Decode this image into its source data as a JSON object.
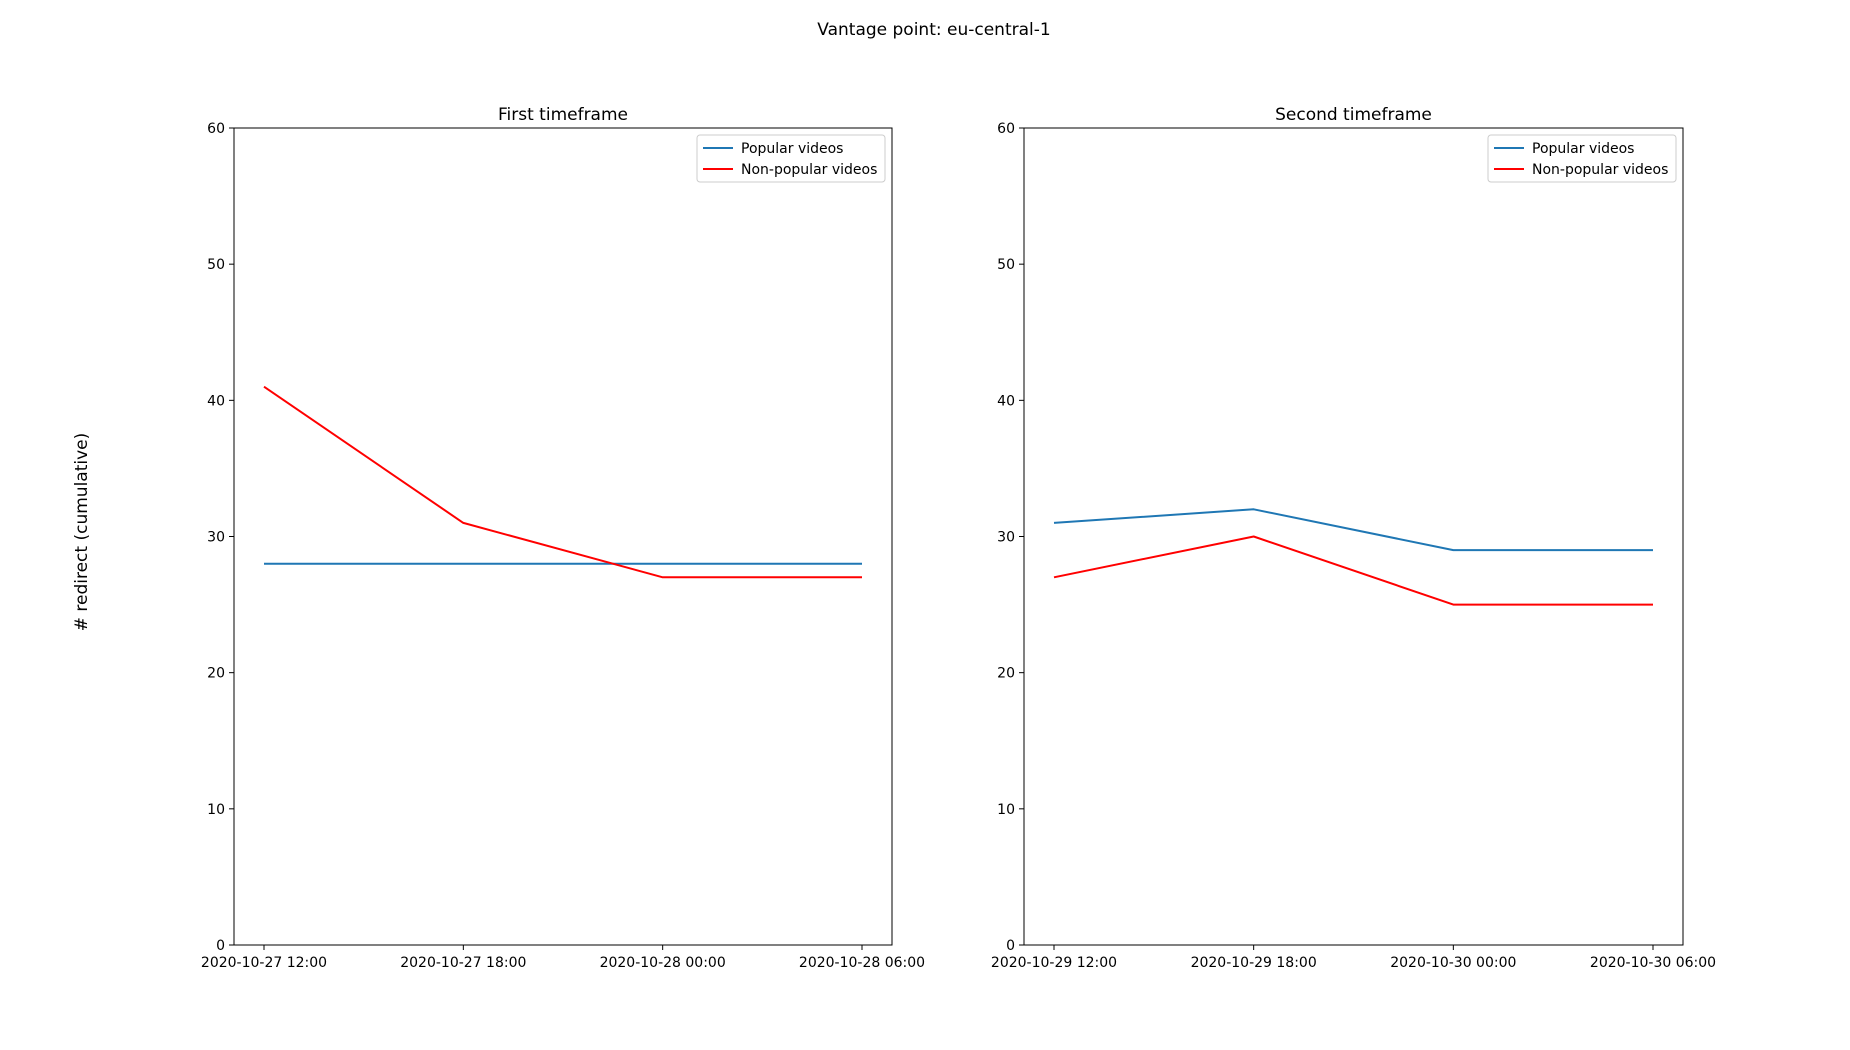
{
  "suptitle": "Vantage point: eu-central-1",
  "ylabel": "# redirect (cumulative)",
  "chart_data": [
    {
      "type": "line",
      "title": "First timeframe",
      "x": [
        "2020-10-27 12:00",
        "2020-10-27 18:00",
        "2020-10-28 00:00",
        "2020-10-28 06:00"
      ],
      "ylim": [
        0,
        60
      ],
      "yticks": [
        0,
        10,
        20,
        30,
        40,
        50,
        60
      ],
      "ylabel": "# redirect (cumulative)",
      "legend_position": "top-right",
      "grid": false,
      "series": [
        {
          "name": "Popular videos",
          "color": "#1f77b4",
          "values": [
            28,
            28,
            28,
            28
          ]
        },
        {
          "name": "Non-popular videos",
          "color": "#ff0000",
          "values": [
            41,
            31,
            27,
            27
          ]
        }
      ]
    },
    {
      "type": "line",
      "title": "Second timeframe",
      "x": [
        "2020-10-29 12:00",
        "2020-10-29 18:00",
        "2020-10-30 00:00",
        "2020-10-30 06:00"
      ],
      "ylim": [
        0,
        60
      ],
      "yticks": [
        0,
        10,
        20,
        30,
        40,
        50,
        60
      ],
      "legend_position": "top-right",
      "grid": false,
      "series": [
        {
          "name": "Popular videos",
          "color": "#1f77b4",
          "values": [
            31,
            32,
            29,
            29
          ]
        },
        {
          "name": "Non-popular videos",
          "color": "#ff0000",
          "values": [
            27,
            30,
            25,
            25
          ]
        }
      ]
    }
  ]
}
